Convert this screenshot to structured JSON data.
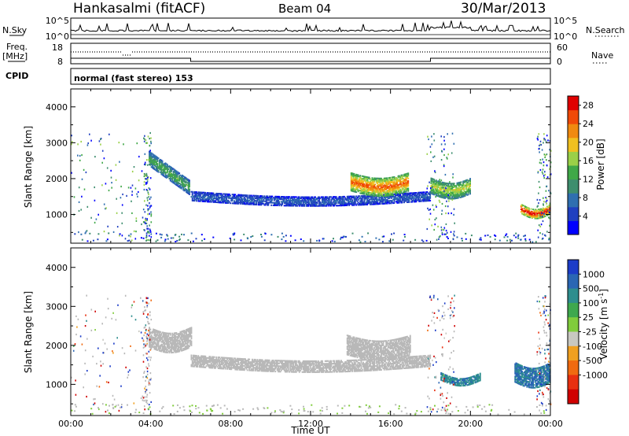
{
  "header": {
    "station": "Hankasalmi (fitACF)",
    "beam": "Beam 04",
    "date": "30/Mar/2013"
  },
  "strip": {
    "nsky_label": "N.Sky",
    "nsky_ticks": [
      "10^5",
      "10^0"
    ],
    "nsearch_label": "N.Search",
    "nsearch_ticks": [
      "10^5",
      "10^0"
    ],
    "freq_label_1": "Freq.",
    "freq_label_2": "[MHz]",
    "freq_ticks": [
      "18",
      "8"
    ],
    "nave_label": "Nave",
    "nave_ticks": [
      "60",
      "0"
    ],
    "cpid_label": "CPID",
    "cpid_value": "normal (fast stereo) 153"
  },
  "colors": {
    "power_scale": [
      "#0000ff",
      "#2040c0",
      "#2f6fb0",
      "#3e8e6e",
      "#40a848",
      "#9ad048",
      "#f0c020",
      "#f08a10",
      "#f04a08",
      "#e00000"
    ],
    "velocity_scale": [
      "#1c3cc8",
      "#2a66b4",
      "#2e8e8e",
      "#3ea84e",
      "#80cc3c",
      "#c8c8c0",
      "#f0a020",
      "#f06a10",
      "#e83010",
      "#d00000"
    ],
    "ground_scatter": "#b8b8b8"
  },
  "chart_data": [
    {
      "type": "heatmap",
      "panel": "power",
      "ylabel": "Slant Range [km]",
      "xlim": [
        0,
        24
      ],
      "ylim": [
        200,
        4500
      ],
      "yticks": [
        "1000",
        "2000",
        "3000",
        "4000"
      ],
      "colorbar": {
        "label": "Power [dB]",
        "ticks": [
          "4",
          "8",
          "12",
          "16",
          "20",
          "24",
          "28"
        ],
        "range": [
          0,
          30
        ]
      },
      "regions": [
        {
          "t_start": 3.9,
          "t_end": 5.9,
          "range_start": 2550,
          "range_end": 1750,
          "power": 12
        },
        {
          "t_start": 6.0,
          "t_end": 18.0,
          "range_center": 1500,
          "thickness": 250,
          "power": 6
        },
        {
          "t_start": 14.0,
          "t_end": 16.9,
          "range_center": 1900,
          "thickness": 500,
          "power": 22
        },
        {
          "t_start": 18.0,
          "t_end": 20.0,
          "range_center": 1800,
          "thickness": 450,
          "power": 16
        },
        {
          "t_start": 22.5,
          "t_end": 24.0,
          "range_center": 1150,
          "thickness": 250,
          "power": 26
        }
      ]
    },
    {
      "type": "heatmap",
      "panel": "velocity",
      "ylabel": "Slant Range [km]",
      "xlabel": "Time UT",
      "xlim": [
        0,
        24
      ],
      "ylim": [
        200,
        4500
      ],
      "xticks": [
        "00:00",
        "04:00",
        "08:00",
        "12:00",
        "16:00",
        "20:00",
        "00:00"
      ],
      "yticks": [
        "1000",
        "2000",
        "3000",
        "4000"
      ],
      "colorbar": {
        "label": "Velocity [m s",
        "label_superscript": "-1",
        "label_close": "]",
        "ticks": [
          "1000",
          "500",
          "100",
          "25",
          "-25",
          "-100",
          "-500",
          "-1000"
        ]
      },
      "regions": [
        {
          "t_start": 3.9,
          "t_end": 6.0,
          "range_center": 2200,
          "thickness": 500,
          "velocity": 0
        },
        {
          "t_start": 6.0,
          "t_end": 18.0,
          "range_center": 1600,
          "thickness": 300,
          "velocity": 0
        },
        {
          "t_start": 13.8,
          "t_end": 17.0,
          "range_center": 2000,
          "thickness": 500,
          "velocity": 0
        },
        {
          "t_start": 18.5,
          "t_end": 20.5,
          "range_center": 1200,
          "thickness": 200,
          "velocity": 200
        },
        {
          "t_start": 22.2,
          "t_end": 24.0,
          "range_center": 1300,
          "thickness": 500,
          "velocity": 300
        }
      ]
    }
  ]
}
